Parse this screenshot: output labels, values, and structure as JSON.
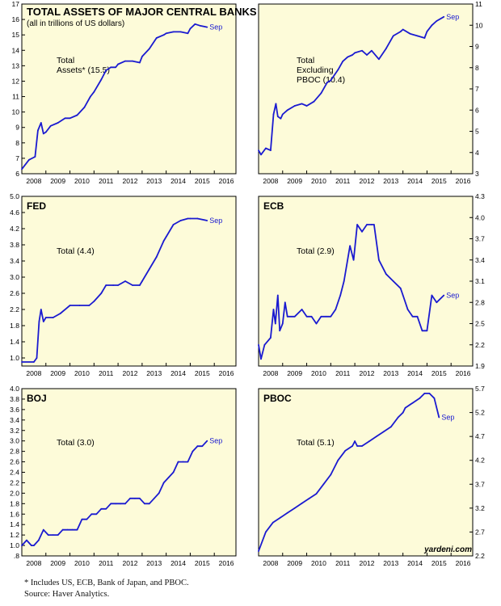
{
  "figure": {
    "footnote": "* Includes US, ECB, Bank of Japan, and PBOC.",
    "source": "Source: Haver Analytics.",
    "credit": "yardeni.com",
    "end_marker": "Sep",
    "colors": {
      "line": "#1a1ad0",
      "panel_bg": "#fdfbd9",
      "axis": "#000000"
    }
  },
  "chart_data": [
    {
      "id": "total-assets",
      "type": "line",
      "title": "TOTAL ASSETS OF MAJOR CENTRAL BANKS",
      "subtitle": "(all in trillions of US dollars)",
      "annotation": [
        "Total",
        "Assets* (15.5)"
      ],
      "y_axis": "left",
      "ylim": [
        6,
        17
      ],
      "yticks": [
        "6",
        "7",
        "8",
        "9",
        "10",
        "11",
        "12",
        "13",
        "14",
        "15",
        "16",
        "17"
      ],
      "xticks": [
        "2008",
        "2009",
        "2010",
        "2011",
        "2012",
        "2013",
        "2014",
        "2015",
        "2016"
      ],
      "xlim": [
        2008,
        2016.9
      ],
      "x": [
        2008.0,
        2008.3,
        2008.55,
        2008.67,
        2008.8,
        2008.9,
        2009.0,
        2009.2,
        2009.5,
        2009.8,
        2010.0,
        2010.3,
        2010.6,
        2010.85,
        2011.0,
        2011.3,
        2011.5,
        2011.7,
        2011.9,
        2012.0,
        2012.3,
        2012.6,
        2012.9,
        2013.0,
        2013.3,
        2013.6,
        2013.9,
        2014.0,
        2014.3,
        2014.6,
        2014.9,
        2015.0,
        2015.2,
        2015.4,
        2015.7
      ],
      "values": [
        6.3,
        6.9,
        7.1,
        8.8,
        9.3,
        8.6,
        8.7,
        9.1,
        9.3,
        9.6,
        9.6,
        9.8,
        10.3,
        11.0,
        11.3,
        12.1,
        12.7,
        12.9,
        12.9,
        13.1,
        13.3,
        13.3,
        13.2,
        13.6,
        14.1,
        14.8,
        15.0,
        15.1,
        15.2,
        15.2,
        15.1,
        15.4,
        15.7,
        15.6,
        15.5
      ]
    },
    {
      "id": "total-ex-pboc",
      "type": "line",
      "annotation": [
        "Total",
        "Excluding",
        "PBOC (10.4)"
      ],
      "y_axis": "right",
      "ylim": [
        3,
        11
      ],
      "yticks": [
        "3",
        "4",
        "5",
        "6",
        "7",
        "8",
        "9",
        "10",
        "11"
      ],
      "xticks": [
        "2008",
        "2009",
        "2010",
        "2011",
        "2012",
        "2013",
        "2014",
        "2015",
        "2016"
      ],
      "xlim": [
        2008,
        2016.9
      ],
      "x": [
        2008.0,
        2008.1,
        2008.3,
        2008.5,
        2008.62,
        2008.72,
        2008.8,
        2008.92,
        2009.0,
        2009.2,
        2009.5,
        2009.8,
        2010.0,
        2010.3,
        2010.6,
        2010.85,
        2011.0,
        2011.3,
        2011.5,
        2011.7,
        2011.9,
        2012.0,
        2012.3,
        2012.5,
        2012.7,
        2013.0,
        2013.3,
        2013.6,
        2013.9,
        2014.0,
        2014.3,
        2014.6,
        2014.9,
        2015.0,
        2015.2,
        2015.4,
        2015.7
      ],
      "values": [
        4.1,
        3.9,
        4.2,
        4.1,
        5.8,
        6.3,
        5.7,
        5.6,
        5.8,
        6.0,
        6.2,
        6.3,
        6.2,
        6.4,
        6.8,
        7.3,
        7.4,
        7.9,
        8.3,
        8.5,
        8.6,
        8.7,
        8.8,
        8.6,
        8.8,
        8.4,
        8.9,
        9.5,
        9.7,
        9.8,
        9.6,
        9.5,
        9.4,
        9.7,
        10.0,
        10.2,
        10.4
      ]
    },
    {
      "id": "fed",
      "type": "line",
      "title": "FED",
      "annotation": [
        "Total (4.4)"
      ],
      "y_axis": "left",
      "ylim": [
        0.8,
        5.0
      ],
      "yticks": [
        "1.0",
        "1.4",
        "1.8",
        "2.2",
        "2.6",
        "3.0",
        "3.4",
        "3.8",
        "4.2",
        "4.6",
        "5.0"
      ],
      "xticks": [
        "2008",
        "2009",
        "2010",
        "2011",
        "2012",
        "2013",
        "2014",
        "2015",
        "2016"
      ],
      "xlim": [
        2008,
        2016.9
      ],
      "x": [
        2008.0,
        2008.5,
        2008.62,
        2008.72,
        2008.8,
        2008.9,
        2009.0,
        2009.3,
        2009.6,
        2010.0,
        2010.4,
        2010.8,
        2011.0,
        2011.3,
        2011.5,
        2011.8,
        2012.0,
        2012.3,
        2012.6,
        2012.9,
        2013.0,
        2013.3,
        2013.6,
        2013.9,
        2014.0,
        2014.3,
        2014.6,
        2014.9,
        2015.0,
        2015.3,
        2015.7
      ],
      "values": [
        0.9,
        0.9,
        1.0,
        1.9,
        2.2,
        1.9,
        2.0,
        2.0,
        2.1,
        2.3,
        2.3,
        2.3,
        2.4,
        2.6,
        2.8,
        2.8,
        2.8,
        2.9,
        2.8,
        2.8,
        2.9,
        3.2,
        3.5,
        3.9,
        4.0,
        4.3,
        4.4,
        4.45,
        4.45,
        4.45,
        4.4
      ]
    },
    {
      "id": "ecb",
      "type": "line",
      "title": "ECB",
      "annotation": [
        "Total (2.9)"
      ],
      "y_axis": "right",
      "ylim": [
        1.9,
        4.3
      ],
      "yticks": [
        "1.9",
        "2.2",
        "2.5",
        "2.8",
        "3.1",
        "3.4",
        "3.7",
        "4.0",
        "4.3"
      ],
      "xticks": [
        "2008",
        "2009",
        "2010",
        "2011",
        "2012",
        "2013",
        "2014",
        "2015",
        "2016"
      ],
      "xlim": [
        2008,
        2016.9
      ],
      "x": [
        2008.0,
        2008.1,
        2008.25,
        2008.5,
        2008.62,
        2008.7,
        2008.8,
        2008.88,
        2009.0,
        2009.1,
        2009.2,
        2009.5,
        2009.8,
        2010.0,
        2010.2,
        2010.4,
        2010.6,
        2010.8,
        2011.0,
        2011.2,
        2011.4,
        2011.55,
        2011.8,
        2011.95,
        2012.1,
        2012.3,
        2012.5,
        2012.7,
        2012.8,
        2013.0,
        2013.3,
        2013.6,
        2013.9,
        2014.0,
        2014.2,
        2014.4,
        2014.6,
        2014.8,
        2015.0,
        2015.2,
        2015.4,
        2015.7
      ],
      "values": [
        2.2,
        2.0,
        2.2,
        2.3,
        2.7,
        2.5,
        2.9,
        2.4,
        2.5,
        2.8,
        2.6,
        2.6,
        2.7,
        2.6,
        2.6,
        2.5,
        2.6,
        2.6,
        2.6,
        2.7,
        2.9,
        3.1,
        3.6,
        3.4,
        3.9,
        3.8,
        3.9,
        3.9,
        3.9,
        3.4,
        3.2,
        3.1,
        3.0,
        2.9,
        2.7,
        2.6,
        2.6,
        2.4,
        2.4,
        2.9,
        2.8,
        2.9
      ]
    },
    {
      "id": "boj",
      "type": "line",
      "title": "BOJ",
      "annotation": [
        "Total (3.0)"
      ],
      "y_axis": "left",
      "ylim": [
        0.8,
        4.0
      ],
      "yticks": [
        ".8",
        "1.0",
        "1.2",
        "1.4",
        "1.6",
        "1.8",
        "2.0",
        "2.2",
        "2.4",
        "2.6",
        "2.8",
        "3.0",
        "3.2",
        "3.4",
        "3.6",
        "3.8",
        "4.0"
      ],
      "xticks": [
        "2008",
        "2009",
        "2010",
        "2011",
        "2012",
        "2013",
        "2014",
        "2015",
        "2016"
      ],
      "xlim": [
        2008,
        2016.9
      ],
      "x": [
        2008.0,
        2008.2,
        2008.4,
        2008.5,
        2008.7,
        2008.9,
        2009.1,
        2009.3,
        2009.5,
        2009.7,
        2009.9,
        2010.1,
        2010.3,
        2010.5,
        2010.7,
        2010.9,
        2011.1,
        2011.3,
        2011.5,
        2011.7,
        2011.9,
        2012.1,
        2012.3,
        2012.5,
        2012.7,
        2012.9,
        2013.1,
        2013.3,
        2013.5,
        2013.7,
        2013.9,
        2014.1,
        2014.3,
        2014.5,
        2014.7,
        2014.9,
        2015.1,
        2015.3,
        2015.5,
        2015.7
      ],
      "values": [
        1.0,
        1.1,
        1.0,
        1.0,
        1.1,
        1.3,
        1.2,
        1.2,
        1.2,
        1.3,
        1.3,
        1.3,
        1.3,
        1.5,
        1.5,
        1.6,
        1.6,
        1.7,
        1.7,
        1.8,
        1.8,
        1.8,
        1.8,
        1.9,
        1.9,
        1.9,
        1.8,
        1.8,
        1.9,
        2.0,
        2.2,
        2.3,
        2.4,
        2.6,
        2.6,
        2.6,
        2.8,
        2.9,
        2.9,
        3.0
      ]
    },
    {
      "id": "pboc",
      "type": "line",
      "title": "PBOC",
      "annotation": [
        "Total (5.1)"
      ],
      "y_axis": "right",
      "ylim": [
        2.2,
        5.7
      ],
      "yticks": [
        "2.2",
        "2.7",
        "3.2",
        "3.7",
        "4.2",
        "4.7",
        "5.2",
        "5.7"
      ],
      "xticks": [
        "2008",
        "2009",
        "2010",
        "2011",
        "2012",
        "2013",
        "2014",
        "2015",
        "2016"
      ],
      "xlim": [
        2008,
        2016.9
      ],
      "x": [
        2008.0,
        2008.3,
        2008.6,
        2008.9,
        2009.2,
        2009.5,
        2009.8,
        2010.1,
        2010.4,
        2010.7,
        2011.0,
        2011.3,
        2011.6,
        2011.9,
        2012.0,
        2012.1,
        2012.3,
        2012.6,
        2012.9,
        2013.2,
        2013.5,
        2013.8,
        2014.0,
        2014.1,
        2014.4,
        2014.7,
        2014.9,
        2015.1,
        2015.3,
        2015.5
      ],
      "values": [
        2.3,
        2.7,
        2.9,
        3.0,
        3.1,
        3.2,
        3.3,
        3.4,
        3.5,
        3.7,
        3.9,
        4.2,
        4.4,
        4.5,
        4.6,
        4.5,
        4.5,
        4.6,
        4.7,
        4.8,
        4.9,
        5.1,
        5.2,
        5.3,
        5.4,
        5.5,
        5.6,
        5.6,
        5.5,
        5.1
      ]
    }
  ]
}
